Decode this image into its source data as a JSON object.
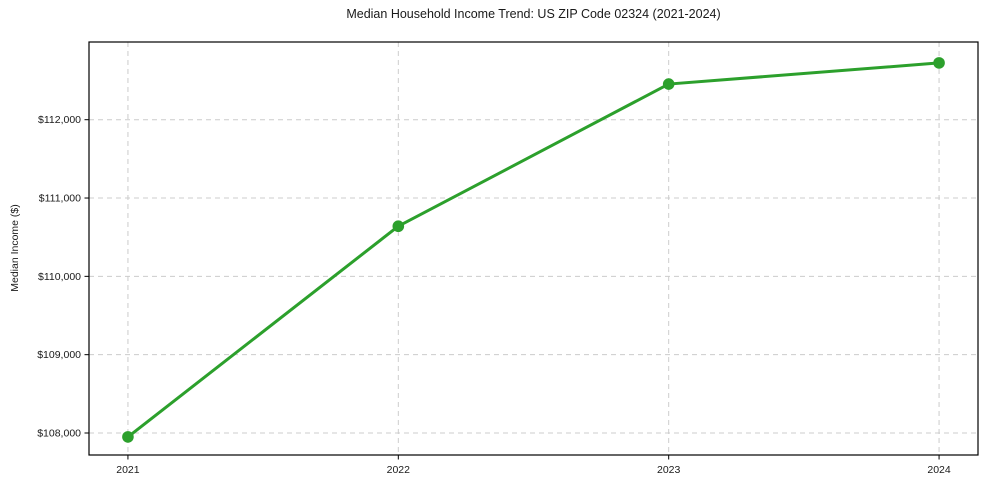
{
  "chart_data": {
    "type": "line",
    "title": "Median Household Income Trend: US ZIP Code 02324 (2021-2024)",
    "xlabel": "",
    "ylabel": "Median Income ($)",
    "x": [
      2021,
      2022,
      2023,
      2024
    ],
    "x_tick_labels": [
      "2021",
      "2022",
      "2023",
      "2024"
    ],
    "y_ticks": [
      108000,
      109000,
      110000,
      111000,
      112000
    ],
    "y_tick_labels": [
      "$108,000",
      "$109,000",
      "$110,000",
      "$111,000",
      "$112,000"
    ],
    "series": [
      {
        "name": "Median Household Income",
        "values": [
          107950,
          110640,
          112455,
          112725
        ],
        "color": "#2ca02c",
        "marker": "circle"
      }
    ],
    "xlim": [
      2020.856,
      2024.144
    ],
    "ylim": [
      107719,
      112992
    ],
    "grid": {
      "show": true,
      "style": "dashed",
      "axes": "both",
      "color": "#cccccc"
    },
    "legend": {
      "show": false
    },
    "colors": {
      "line": "#2ca02c",
      "text": "#1a1a1a",
      "spine": "#000000",
      "background": "#ffffff"
    }
  }
}
